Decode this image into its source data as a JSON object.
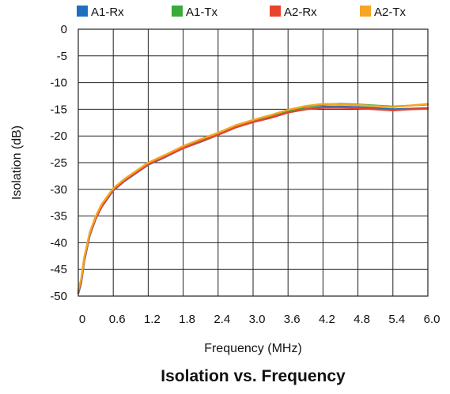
{
  "chart_data": {
    "type": "line",
    "title": "Isolation vs. Frequency",
    "xlabel": "Frequency (MHz)",
    "ylabel": "Isolation (dB)",
    "xlim": [
      0,
      6.0
    ],
    "ylim": [
      -50,
      0
    ],
    "x_ticks": [
      "0",
      "0.6",
      "1.2",
      "1.8",
      "2.4",
      "3.0",
      "3.6",
      "4.2",
      "4.8",
      "5.4",
      "6.0"
    ],
    "y_ticks": [
      "0",
      "-5",
      "-10",
      "-15",
      "-20",
      "-25",
      "-30",
      "-35",
      "-40",
      "-45",
      "-50"
    ],
    "grid": true,
    "legend_position": "top",
    "x": [
      0,
      0.05,
      0.1,
      0.2,
      0.3,
      0.4,
      0.6,
      0.8,
      1.0,
      1.2,
      1.5,
      1.8,
      2.1,
      2.4,
      2.7,
      3.0,
      3.3,
      3.6,
      3.9,
      4.2,
      4.5,
      4.8,
      5.1,
      5.4,
      5.7,
      6.0
    ],
    "series": [
      {
        "name": "A1-Rx",
        "color": "#1f6fbf",
        "values": [
          -49.5,
          -47.5,
          -43.5,
          -38.5,
          -35.5,
          -33.3,
          -30.2,
          -28.4,
          -26.9,
          -25.4,
          -23.9,
          -22.3,
          -21.1,
          -19.8,
          -18.4,
          -17.4,
          -16.6,
          -15.6,
          -15.0,
          -14.5,
          -14.5,
          -14.6,
          -14.8,
          -15.0,
          -14.9,
          -14.8
        ]
      },
      {
        "name": "A1-Tx",
        "color": "#3aab3a",
        "values": [
          -49.0,
          -47.0,
          -43.0,
          -38.0,
          -35.2,
          -33.0,
          -30.0,
          -28.2,
          -26.7,
          -25.2,
          -23.7,
          -22.1,
          -20.9,
          -19.6,
          -18.2,
          -17.2,
          -16.4,
          -15.4,
          -14.6,
          -14.1,
          -14.0,
          -14.1,
          -14.3,
          -14.5,
          -14.3,
          -14.1
        ]
      },
      {
        "name": "A2-Rx",
        "color": "#e8432c",
        "values": [
          -49.3,
          -47.2,
          -43.2,
          -38.3,
          -35.4,
          -33.2,
          -30.1,
          -28.3,
          -26.8,
          -25.3,
          -23.8,
          -22.3,
          -21.0,
          -19.8,
          -18.4,
          -17.4,
          -16.6,
          -15.6,
          -15.0,
          -14.7,
          -14.7,
          -14.8,
          -15.0,
          -15.2,
          -15.0,
          -14.9
        ]
      },
      {
        "name": "A2-Tx",
        "color": "#f5a623",
        "values": [
          -48.8,
          -46.8,
          -42.8,
          -38.0,
          -35.0,
          -32.8,
          -29.8,
          -28.0,
          -26.5,
          -25.0,
          -23.5,
          -21.9,
          -20.6,
          -19.4,
          -18.0,
          -17.0,
          -16.1,
          -15.1,
          -14.4,
          -14.0,
          -14.1,
          -14.2,
          -14.4,
          -14.6,
          -14.3,
          -14.0
        ]
      }
    ]
  }
}
